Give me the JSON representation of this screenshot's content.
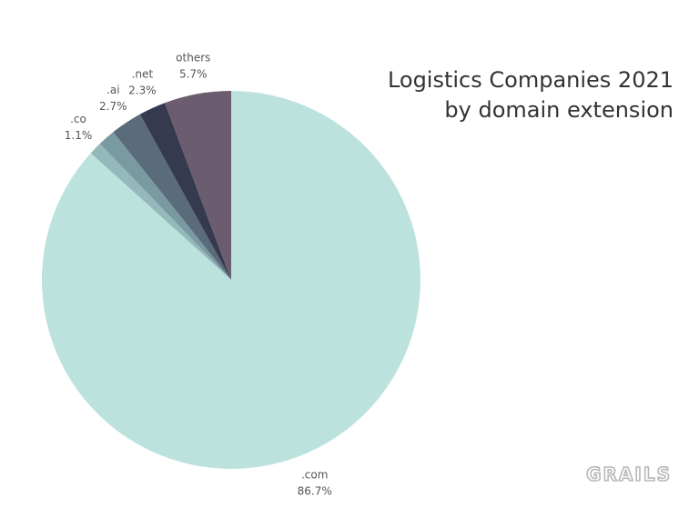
{
  "chart_data": {
    "type": "pie",
    "title_lines": [
      "Logistics Companies 2021",
      "by domain extension"
    ],
    "start": "12 o'clock",
    "direction": "clockwise",
    "legend": "none",
    "slices": [
      {
        "label": ".com",
        "value": 86.7,
        "value_label": "86.7%",
        "color": "#bce2dd"
      },
      {
        "label": ".co",
        "value": 1.1,
        "value_label": "1.1%",
        "color": "#95b8bb"
      },
      {
        "label": "",
        "value": 1.5,
        "value_label": "",
        "color": "#7a9aa2"
      },
      {
        "label": ".ai",
        "value": 2.7,
        "value_label": "2.7%",
        "color": "#5a6b7c"
      },
      {
        "label": ".net",
        "value": 2.3,
        "value_label": "2.3%",
        "color": "#363a4f"
      },
      {
        "label": "others",
        "value": 5.7,
        "value_label": "5.7%",
        "color": "#6b5c6f"
      }
    ]
  },
  "brand": {
    "logo_text": "GRAILS"
  }
}
